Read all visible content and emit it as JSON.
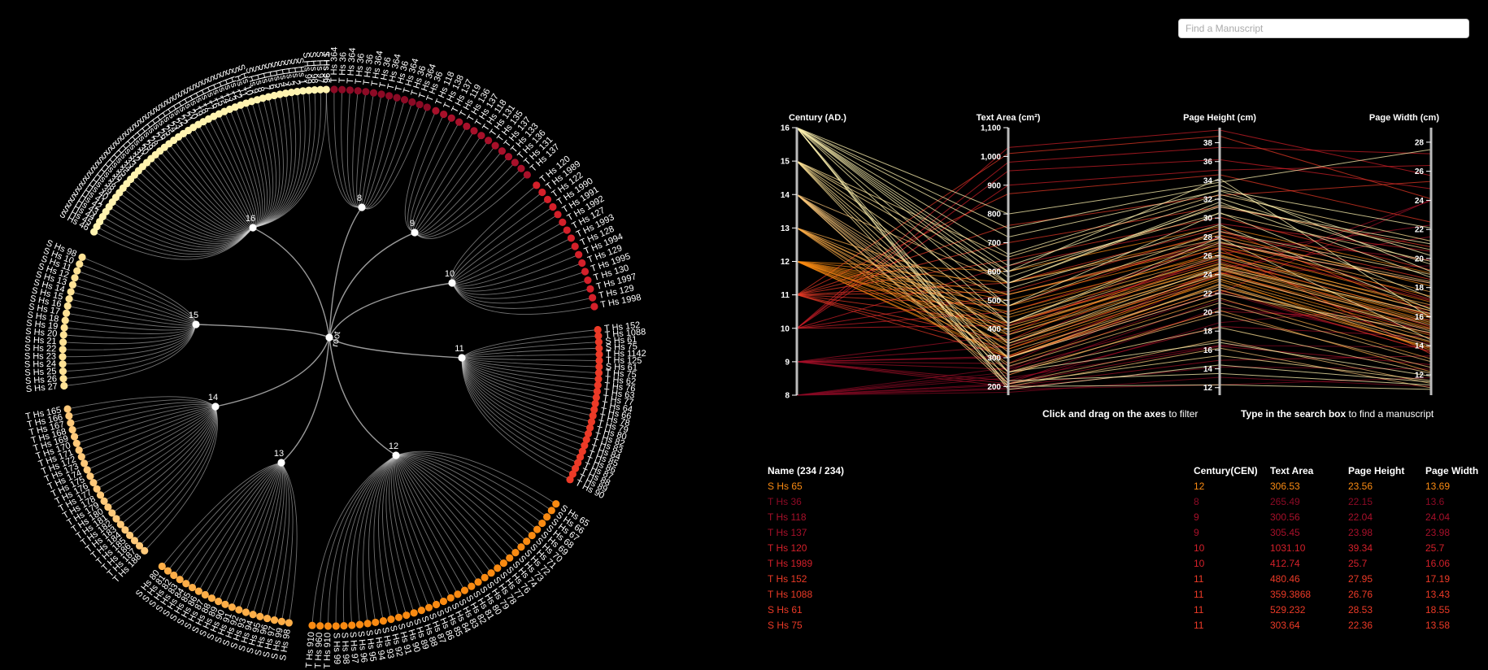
{
  "search": {
    "placeholder": "Find a Manuscript"
  },
  "hints": {
    "filter_bold": "Click and drag on the axes",
    "filter_rest": " to filter",
    "search_bold": "Type in the search box",
    "search_rest": " to find a manuscript"
  },
  "colors": {
    "8": "#8c0a25",
    "9": "#a8102a",
    "10": "#d4202a",
    "11": "#ec3a27",
    "12": "#f98a12",
    "13": "#fdae48",
    "14": "#fec97a",
    "15": "#fee295",
    "16": "#fff3b0"
  },
  "radial": {
    "root_label": "root",
    "groups": [
      {
        "century": "8",
        "labels": [
          "T Hs 36",
          "T Hs 364",
          "T Hs 36",
          "T Hs 364",
          "T Hs 36",
          "T Hs 36",
          "T Hs 364",
          "T Hs 36",
          "T Hs 364",
          "T Hs 36",
          "T Hs 364",
          "T Hs 36",
          "T Hs 364",
          "T Hs 36"
        ]
      },
      {
        "century": "9",
        "labels": [
          "T Hs 118",
          "T Hs 138",
          "T Hs 137",
          "T Hs 119",
          "T Hs 136",
          "T Hs 137",
          "T Hs 118",
          "T Hs 131",
          "T Hs 135",
          "T Hs 137",
          "T Hs 133",
          "T Hs 136",
          "T Hs 131",
          "T Hs 137"
        ]
      },
      {
        "century": "10",
        "labels": [
          "T Hs 120",
          "T Hs 1989",
          "T Hs 122",
          "T Hs 1990",
          "T Hs 1991",
          "T Hs 1992",
          "T Hs 127",
          "T Hs 1993",
          "T Hs 128",
          "T Hs 1994",
          "T Hs 129",
          "T Hs 1995",
          "T Hs 130",
          "T Hs 1997",
          "T Hs 129",
          "T Hs 1998"
        ]
      },
      {
        "century": "11",
        "labels": [
          "T Hs 152",
          "T Hs 1088",
          "S Hs 61",
          "S Hs 75",
          "T Hs 1142",
          "T Hs 125",
          "S Hs 61",
          "T Hs 75",
          "T Hs 62",
          "T Hs 76",
          "T Hs 63",
          "T Hs 77",
          "T Hs 64",
          "T Hs 66",
          "T Hs 78",
          "T Hs 79",
          "T Hs 80",
          "T Hs 82",
          "T Hs 83",
          "T Hs 84",
          "T Hs 85",
          "T Hs 86",
          "T Hs 87",
          "T Hs 88",
          "T Hs 89",
          "T Hs 90"
        ]
      },
      {
        "century": "12",
        "labels": [
          "S Hs 65",
          "S Hs 66",
          "S Hs 67",
          "S Hs 68",
          "S Hs 69",
          "S Hs 70",
          "S Hs 71",
          "S Hs 72",
          "S Hs 73",
          "S Hs 74",
          "S Hs 76",
          "S Hs 77",
          "S Hs 78",
          "S Hs 79",
          "S Hs 80",
          "S Hs 81",
          "S Hs 82",
          "S Hs 83",
          "S Hs 84",
          "S Hs 85",
          "S Hs 86",
          "S Hs 87",
          "S Hs 88",
          "S Hs 89",
          "S Hs 90",
          "S Hs 91",
          "S Hs 92",
          "S Hs 93",
          "S Hs 94",
          "S Hs 95",
          "S Hs 96",
          "S Hs 97",
          "S Hs 98",
          "S Hs 99",
          "T Hs 910",
          "T Hs 960",
          "T Hs 910"
        ]
      },
      {
        "century": "13",
        "labels": [
          "S Hs 98",
          "S Hs 99",
          "S Hs 97",
          "S Hs 96",
          "S Hs 95",
          "S Hs 94",
          "S Hs 93",
          "S Hs 92",
          "S Hs 91",
          "S Hs 90",
          "S Hs 89",
          "S Hs 88",
          "S Hs 87",
          "S Hs 86",
          "S Hs 85",
          "S Hs 84",
          "S Hs 83",
          "S Hs 82",
          "S Hs 81",
          "S Hs 80"
        ]
      },
      {
        "century": "14",
        "labels": [
          "T Hs 188",
          "T Hs 187",
          "T Hs 186",
          "T Hs 185",
          "T Hs 184",
          "T Hs 183",
          "T Hs 182",
          "T Hs 181",
          "T Hs 180",
          "T Hs 179",
          "T Hs 178",
          "T Hs 177",
          "T Hs 176",
          "T Hs 175",
          "T Hs 174",
          "T Hs 173",
          "T Hs 172",
          "T Hs 171",
          "T Hs 170",
          "T Hs 169",
          "T Hs 168",
          "T Hs 167",
          "T Hs 166",
          "T Hs 165"
        ]
      },
      {
        "century": "15",
        "labels": [
          "S Hs 27",
          "S Hs 26",
          "S Hs 25",
          "S Hs 24",
          "S Hs 23",
          "S Hs 22",
          "S Hs 21",
          "S Hs 20",
          "S Hs 19",
          "S Hs 18",
          "S Hs 17",
          "S Hs 16",
          "S Hs 15",
          "S Hs 14",
          "S Hs 13",
          "S Hs 12",
          "S Hs 11",
          "S Hs 10",
          "S Hs 98"
        ]
      },
      {
        "century": "16",
        "labels": [
          "S Hs 46",
          "S Hs 45",
          "S Hs 44",
          "S Hs 43",
          "S Hs 42",
          "S Hs 41",
          "S Hs 40",
          "S Hs 39",
          "S Hs 38",
          "S Hs 37",
          "S Hs 36",
          "S Hs 35",
          "S Hs 34",
          "S Hs 33",
          "S Hs 32",
          "S Hs 31",
          "S Hs 30",
          "S Hs 29",
          "S Hs 28",
          "S Hs 27",
          "S Hs 26",
          "S Hs 25",
          "S Hs 24",
          "S Hs 23",
          "S Hs 22",
          "S Hs 21",
          "S Hs 20",
          "S Hs 19",
          "S Hs 18",
          "S Hs 17",
          "S Hs 16",
          "S Hs 15",
          "S Hs 14",
          "S Hs 13",
          "S Hs 12",
          "S Hs 11",
          "S Hs 10",
          "S Hs 9",
          "S Hs 8",
          "S Hs 7",
          "S Hs 6",
          "S Hs 5",
          "S Hs 4",
          "S Hs 3",
          "S Hs 2",
          "S Hs 1",
          "S Hs 99",
          "S Hs 98",
          "S Hs 97",
          "S Hs 96"
        ]
      }
    ]
  },
  "chart_data": {
    "type": "parallel-coordinates",
    "axes": [
      {
        "label": "Century (AD.)",
        "ticks": [
          "8",
          "9",
          "10",
          "11",
          "12",
          "13",
          "14",
          "15",
          "16"
        ],
        "min": 8,
        "max": 16
      },
      {
        "label": "Text Area (cm²)",
        "ticks": [
          "200",
          "300",
          "400",
          "500",
          "600",
          "700",
          "800",
          "900",
          "1,000",
          "1,100"
        ],
        "min": 170,
        "max": 1100
      },
      {
        "label": "Page Height (cm)",
        "ticks": [
          "12",
          "14",
          "16",
          "18",
          "20",
          "22",
          "24",
          "26",
          "28",
          "30",
          "32",
          "34",
          "36",
          "38"
        ],
        "min": 11.2,
        "max": 39.6
      },
      {
        "label": "Page Width (cm)",
        "ticks": [
          "12",
          "14",
          "16",
          "18",
          "20",
          "22",
          "24",
          "26",
          "28"
        ],
        "min": 10.6,
        "max": 29
      }
    ],
    "lines": [
      [
        8,
        265.49,
        22.15,
        13.6
      ],
      [
        8,
        210,
        20.5,
        15.2
      ],
      [
        8,
        190,
        12.3,
        11.8
      ],
      [
        8,
        230,
        16.5,
        13.9
      ],
      [
        8,
        195,
        14.2,
        12.4
      ],
      [
        8,
        250,
        24.1,
        19.5
      ],
      [
        8,
        180,
        13.1,
        11.2
      ],
      [
        8,
        205,
        18.9,
        16.8
      ],
      [
        8,
        240,
        21.3,
        14.1
      ],
      [
        9,
        300.56,
        22.04,
        24.04
      ],
      [
        9,
        305.45,
        23.98,
        23.98
      ],
      [
        9,
        220,
        18.5,
        14.6
      ],
      [
        9,
        260,
        20.1,
        15.8
      ],
      [
        9,
        340,
        26.2,
        22.3
      ],
      [
        9,
        210,
        16.4,
        12.7
      ],
      [
        9,
        280,
        24.7,
        21.5
      ],
      [
        9,
        200,
        14.9,
        13.3
      ],
      [
        9,
        380,
        28.1,
        19.9
      ],
      [
        10,
        1031.1,
        39.34,
        25.7
      ],
      [
        10,
        412.74,
        25.7,
        16.06
      ],
      [
        10,
        980,
        37.5,
        27.2
      ],
      [
        10,
        950,
        36.2,
        24.8
      ],
      [
        10,
        520,
        27.3,
        18.3
      ],
      [
        10,
        900,
        35.1,
        26.4
      ],
      [
        10,
        620,
        29.4,
        20.5
      ],
      [
        10,
        460,
        26.9,
        17.1
      ],
      [
        11,
        480.46,
        27.95,
        17.19
      ],
      [
        11,
        359.3868,
        26.76,
        13.43
      ],
      [
        11,
        529.232,
        28.53,
        18.55
      ],
      [
        11,
        303.64,
        22.36,
        13.58
      ],
      [
        11,
        1010,
        38.7,
        24.1
      ],
      [
        11,
        870,
        34.6,
        22.5
      ],
      [
        11,
        700,
        31.2,
        20.8
      ],
      [
        11,
        560,
        28.9,
        16.2
      ],
      [
        11,
        420,
        25.4,
        15.3
      ],
      [
        11,
        760,
        32.4,
        25.3
      ],
      [
        11,
        330,
        24.3,
        14.8
      ],
      [
        11,
        640,
        30.1,
        19.2
      ],
      [
        12,
        306.53,
        23.56,
        13.69
      ],
      [
        12,
        520,
        27.1,
        17.4
      ],
      [
        12,
        460,
        26.4,
        16.6
      ],
      [
        12,
        400,
        24.9,
        15.7
      ],
      [
        12,
        380,
        24.2,
        15.2
      ],
      [
        12,
        560,
        28.2,
        18.1
      ],
      [
        12,
        500,
        26.8,
        17.0
      ],
      [
        12,
        440,
        25.6,
        16.1
      ],
      [
        12,
        300,
        22.9,
        13.8
      ],
      [
        12,
        480,
        26.1,
        16.4
      ],
      [
        12,
        350,
        23.8,
        14.7
      ],
      [
        12,
        600,
        29.1,
        19.0
      ],
      [
        12,
        420,
        25.1,
        15.9
      ],
      [
        12,
        390,
        24.5,
        15.5
      ],
      [
        12,
        330,
        23.3,
        14.2
      ],
      [
        13,
        400,
        25.2,
        16.0
      ],
      [
        13,
        360,
        24.0,
        15.1
      ],
      [
        13,
        450,
        26.0,
        16.8
      ],
      [
        13,
        300,
        22.4,
        13.9
      ],
      [
        13,
        520,
        27.5,
        17.7
      ],
      [
        13,
        280,
        21.5,
        13.1
      ],
      [
        13,
        410,
        24.7,
        15.6
      ],
      [
        13,
        340,
        23.5,
        14.5
      ],
      [
        13,
        240,
        20.2,
        12.2
      ],
      [
        14,
        300,
        23.0,
        14.0
      ],
      [
        14,
        350,
        24.1,
        15.0
      ],
      [
        14,
        250,
        19.8,
        12.5
      ],
      [
        14,
        420,
        25.9,
        16.4
      ],
      [
        14,
        210,
        17.1,
        11.4
      ],
      [
        14,
        380,
        24.6,
        15.4
      ],
      [
        14,
        270,
        21.0,
        12.9
      ],
      [
        14,
        560,
        27.8,
        18.4
      ],
      [
        14,
        200,
        16.2,
        11.1
      ],
      [
        14,
        320,
        22.7,
        14.3
      ],
      [
        15,
        600,
        30.5,
        19.8
      ],
      [
        15,
        560,
        31.4,
        20.6
      ],
      [
        15,
        420,
        27.4,
        18.3
      ],
      [
        15,
        300,
        22.0,
        14.9
      ],
      [
        15,
        250,
        18.4,
        12.1
      ],
      [
        15,
        650,
        32.5,
        21.2
      ],
      [
        15,
        210,
        15.4,
        11.6
      ],
      [
        15,
        480,
        28.6,
        18.9
      ],
      [
        15,
        350,
        24.8,
        16.2
      ],
      [
        16,
        580,
        31.2,
        21.0
      ],
      [
        16,
        620,
        32.1,
        19.6
      ],
      [
        16,
        800,
        33.8,
        27.5
      ],
      [
        16,
        720,
        32.9,
        20.2
      ],
      [
        16,
        560,
        31.7,
        18.7
      ],
      [
        16,
        600,
        34.2,
        15.9
      ],
      [
        16,
        480,
        30.6,
        17.3
      ],
      [
        16,
        660,
        33.0,
        22.1
      ],
      [
        16,
        220,
        13.5,
        11.3
      ],
      [
        16,
        200,
        12.3,
        11.0
      ],
      [
        16,
        250,
        16.8,
        11.9
      ],
      [
        16,
        540,
        29.3,
        16.5
      ],
      [
        16,
        750,
        33.5,
        19.1
      ],
      [
        16,
        190,
        14.4,
        11.5
      ],
      [
        16,
        420,
        27.9,
        14.4
      ]
    ]
  },
  "table": {
    "headers": {
      "name": "Name (234 / 234)",
      "century": "Century(CEN)",
      "area": "Text Area",
      "height": "Page Height",
      "width": "Page Width"
    },
    "rows": [
      {
        "name": "S Hs 65",
        "century": "12",
        "area": "306.53",
        "height": "23.56",
        "width": "13.69"
      },
      {
        "name": "T Hs 36",
        "century": "8",
        "area": "265.49",
        "height": "22.15",
        "width": "13.6"
      },
      {
        "name": "T Hs 118",
        "century": "9",
        "area": "300.56",
        "height": "22.04",
        "width": "24.04"
      },
      {
        "name": "T Hs 137",
        "century": "9",
        "area": "305.45",
        "height": "23.98",
        "width": "23.98"
      },
      {
        "name": "T Hs 120",
        "century": "10",
        "area": "1031.10",
        "height": "39.34",
        "width": "25.7"
      },
      {
        "name": "T Hs 1989",
        "century": "10",
        "area": "412.74",
        "height": "25.7",
        "width": "16.06"
      },
      {
        "name": "T Hs 152",
        "century": "11",
        "area": "480.46",
        "height": "27.95",
        "width": "17.19"
      },
      {
        "name": "T Hs 1088",
        "century": "11",
        "area": "359.3868",
        "height": "26.76",
        "width": "13.43"
      },
      {
        "name": "S Hs 61",
        "century": "11",
        "area": "529.232",
        "height": "28.53",
        "width": "18.55"
      },
      {
        "name": "S Hs 75",
        "century": "11",
        "area": "303.64",
        "height": "22.36",
        "width": "13.58"
      }
    ]
  }
}
